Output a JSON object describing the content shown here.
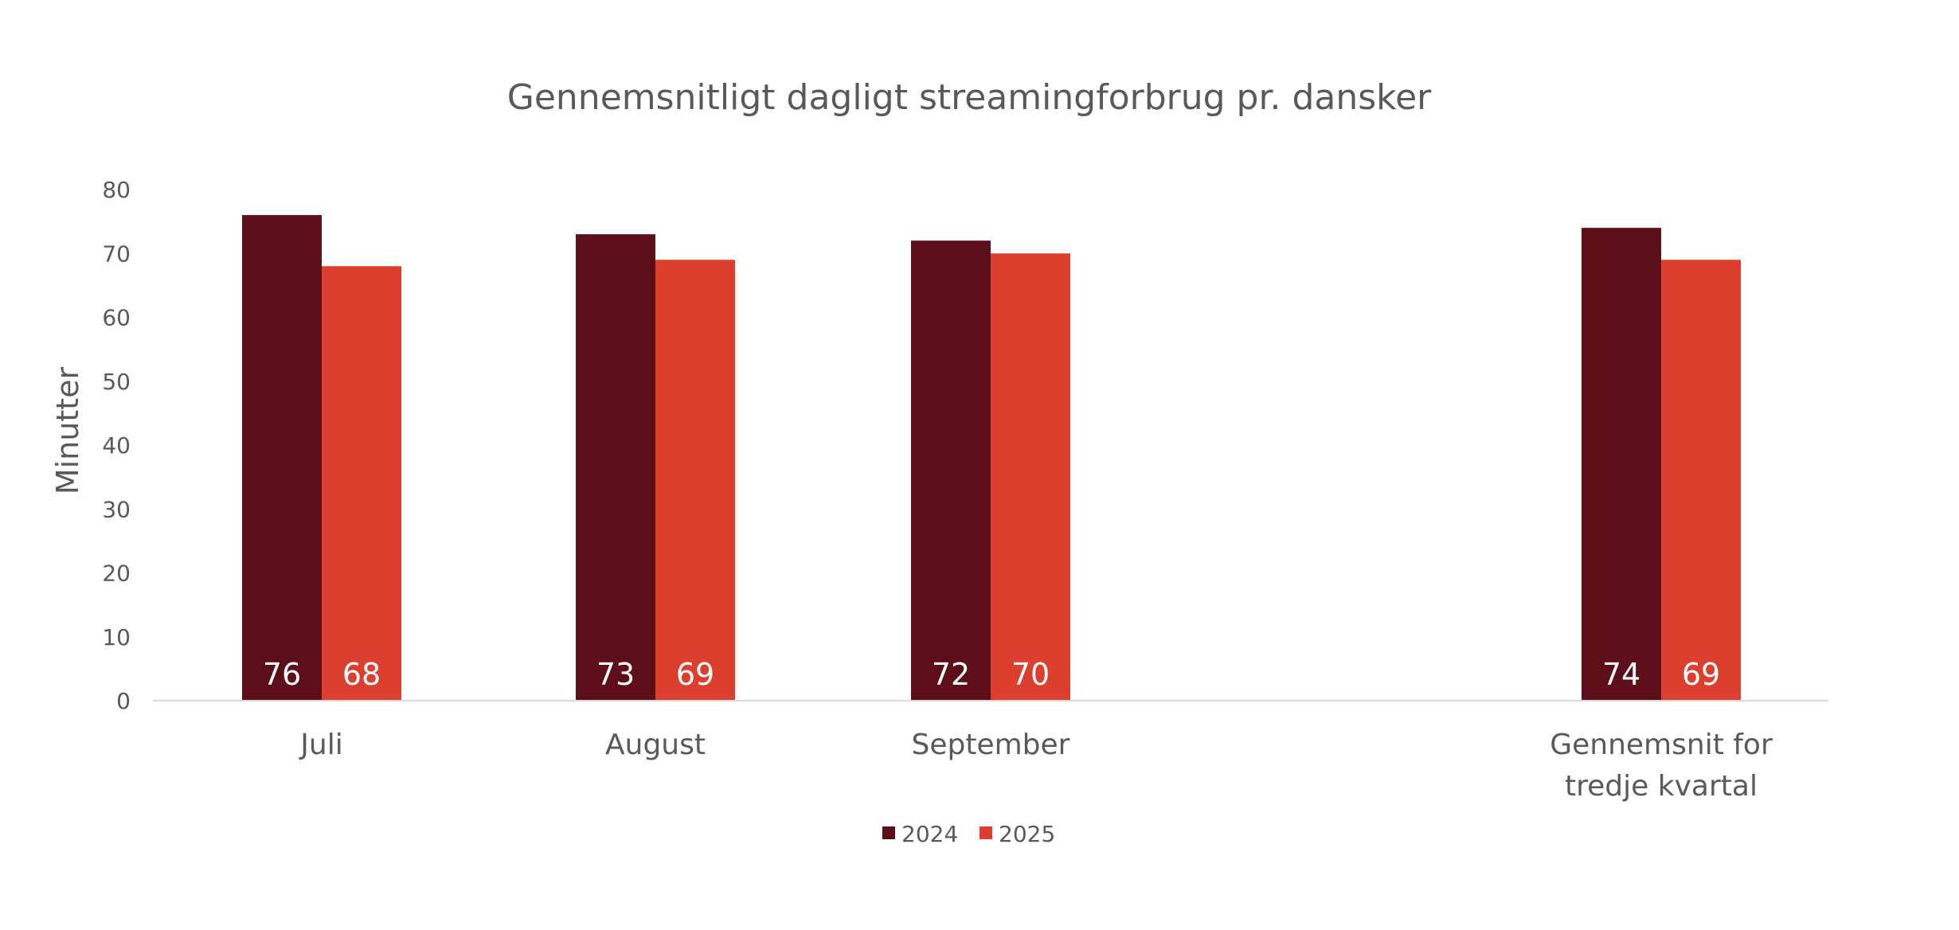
{
  "chart_data": {
    "type": "bar",
    "title": "Gennemsnitligt dagligt streamingforbrug pr. dansker",
    "xlabel": "",
    "ylabel": "Minutter",
    "ylim": [
      0,
      80
    ],
    "yticks": [
      0,
      10,
      20,
      30,
      40,
      50,
      60,
      70,
      80
    ],
    "grid": false,
    "legend_position": "bottom",
    "categories": [
      [
        "Juli"
      ],
      [
        "August"
      ],
      [
        "September"
      ],
      [
        "Gennemsnit for",
        "tredje kvartal"
      ]
    ],
    "series": [
      {
        "name": "2024",
        "color": "#5C0F19",
        "values": [
          76,
          73,
          72,
          74
        ]
      },
      {
        "name": "2025",
        "color": "#DC3F2E",
        "values": [
          68,
          69,
          70,
          69
        ]
      }
    ],
    "data_label_color": "#FFFFFF"
  }
}
